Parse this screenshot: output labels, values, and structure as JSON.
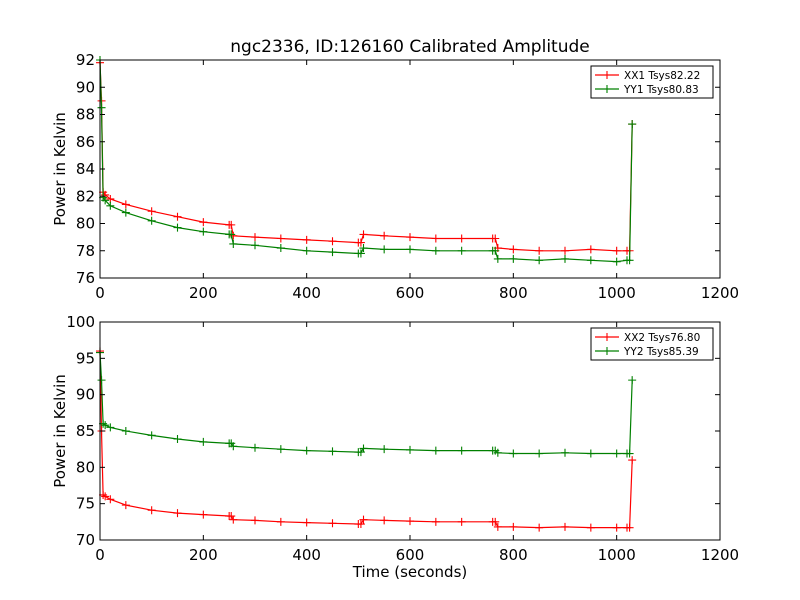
{
  "figure": {
    "title": "ngc2336, ID:126160 Calibrated Amplitude",
    "xlabel": "Time (seconds)"
  },
  "chart_data": [
    {
      "type": "line",
      "title": "ngc2336, ID:126160 Calibrated Amplitude",
      "xlabel": "",
      "ylabel": "Power in Kelvin",
      "xlim": [
        0,
        1200
      ],
      "ylim": [
        76,
        92
      ],
      "xticks": [
        0,
        200,
        400,
        600,
        800,
        1000,
        1200
      ],
      "yticks": [
        76,
        78,
        80,
        82,
        84,
        86,
        88,
        90,
        92
      ],
      "legend_position": "top-right",
      "grid": false,
      "series": [
        {
          "name": "XX1 Tsys82.22",
          "color": "#ff0000",
          "x": [
            0,
            3,
            6,
            10,
            20,
            50,
            100,
            150,
            200,
            250,
            254,
            258,
            300,
            350,
            400,
            450,
            500,
            505,
            510,
            550,
            600,
            650,
            700,
            760,
            765,
            770,
            800,
            850,
            900,
            950,
            1000,
            1020,
            1025,
            1030
          ],
          "y": [
            91.8,
            89.0,
            82.3,
            82.1,
            81.8,
            81.4,
            80.9,
            80.5,
            80.1,
            79.9,
            79.9,
            79.1,
            79.0,
            78.9,
            78.8,
            78.7,
            78.6,
            78.6,
            79.2,
            79.1,
            79.0,
            78.9,
            78.9,
            78.9,
            78.9,
            78.2,
            78.1,
            78.0,
            78.0,
            78.1,
            78.0,
            78.0,
            78.0,
            87.3
          ]
        },
        {
          "name": "YY1 Tsys80.83",
          "color": "#008000",
          "x": [
            0,
            3,
            6,
            10,
            20,
            50,
            100,
            150,
            200,
            250,
            254,
            258,
            300,
            350,
            400,
            450,
            500,
            505,
            510,
            550,
            600,
            650,
            700,
            760,
            765,
            770,
            800,
            850,
            900,
            950,
            1000,
            1020,
            1025,
            1030
          ],
          "y": [
            92.0,
            88.5,
            81.9,
            81.7,
            81.3,
            80.8,
            80.2,
            79.7,
            79.4,
            79.2,
            79.2,
            78.5,
            78.4,
            78.2,
            78.0,
            77.9,
            77.8,
            77.8,
            78.2,
            78.1,
            78.1,
            78.0,
            78.0,
            78.0,
            78.0,
            77.4,
            77.4,
            77.3,
            77.4,
            77.3,
            77.2,
            77.3,
            77.3,
            87.3
          ]
        }
      ]
    },
    {
      "type": "line",
      "title": "",
      "xlabel": "Time (seconds)",
      "ylabel": "Power in Kelvin",
      "xlim": [
        0,
        1200
      ],
      "ylim": [
        70,
        100
      ],
      "xticks": [
        0,
        200,
        400,
        600,
        800,
        1000,
        1200
      ],
      "yticks": [
        70,
        75,
        80,
        85,
        90,
        95,
        100
      ],
      "legend_position": "top-right",
      "grid": false,
      "series": [
        {
          "name": "XX2 Tsys76.80",
          "color": "#ff0000",
          "x": [
            0,
            3,
            6,
            10,
            20,
            50,
            100,
            150,
            200,
            250,
            254,
            258,
            300,
            350,
            400,
            450,
            500,
            505,
            510,
            550,
            600,
            650,
            700,
            760,
            765,
            770,
            800,
            850,
            900,
            950,
            1000,
            1020,
            1025,
            1030
          ],
          "y": [
            96.0,
            85.0,
            76.2,
            76.0,
            75.6,
            74.8,
            74.1,
            73.7,
            73.5,
            73.3,
            73.3,
            72.8,
            72.7,
            72.5,
            72.4,
            72.3,
            72.2,
            72.2,
            72.8,
            72.7,
            72.6,
            72.5,
            72.5,
            72.5,
            72.5,
            71.8,
            71.8,
            71.7,
            71.8,
            71.7,
            71.7,
            71.7,
            71.7,
            81.0
          ]
        },
        {
          "name": "YY2 Tsys85.39",
          "color": "#008000",
          "x": [
            0,
            3,
            6,
            10,
            20,
            50,
            100,
            150,
            200,
            250,
            254,
            258,
            300,
            350,
            400,
            450,
            500,
            505,
            510,
            550,
            600,
            650,
            700,
            760,
            765,
            770,
            800,
            850,
            900,
            950,
            1000,
            1020,
            1025,
            1030
          ],
          "y": [
            95.8,
            92.0,
            86.0,
            85.8,
            85.5,
            85.0,
            84.4,
            83.9,
            83.5,
            83.3,
            83.3,
            82.9,
            82.7,
            82.5,
            82.3,
            82.2,
            82.1,
            82.1,
            82.6,
            82.5,
            82.4,
            82.3,
            82.3,
            82.3,
            82.3,
            82.0,
            81.9,
            81.9,
            82.0,
            81.9,
            81.9,
            81.9,
            81.9,
            92.0
          ]
        }
      ]
    }
  ]
}
